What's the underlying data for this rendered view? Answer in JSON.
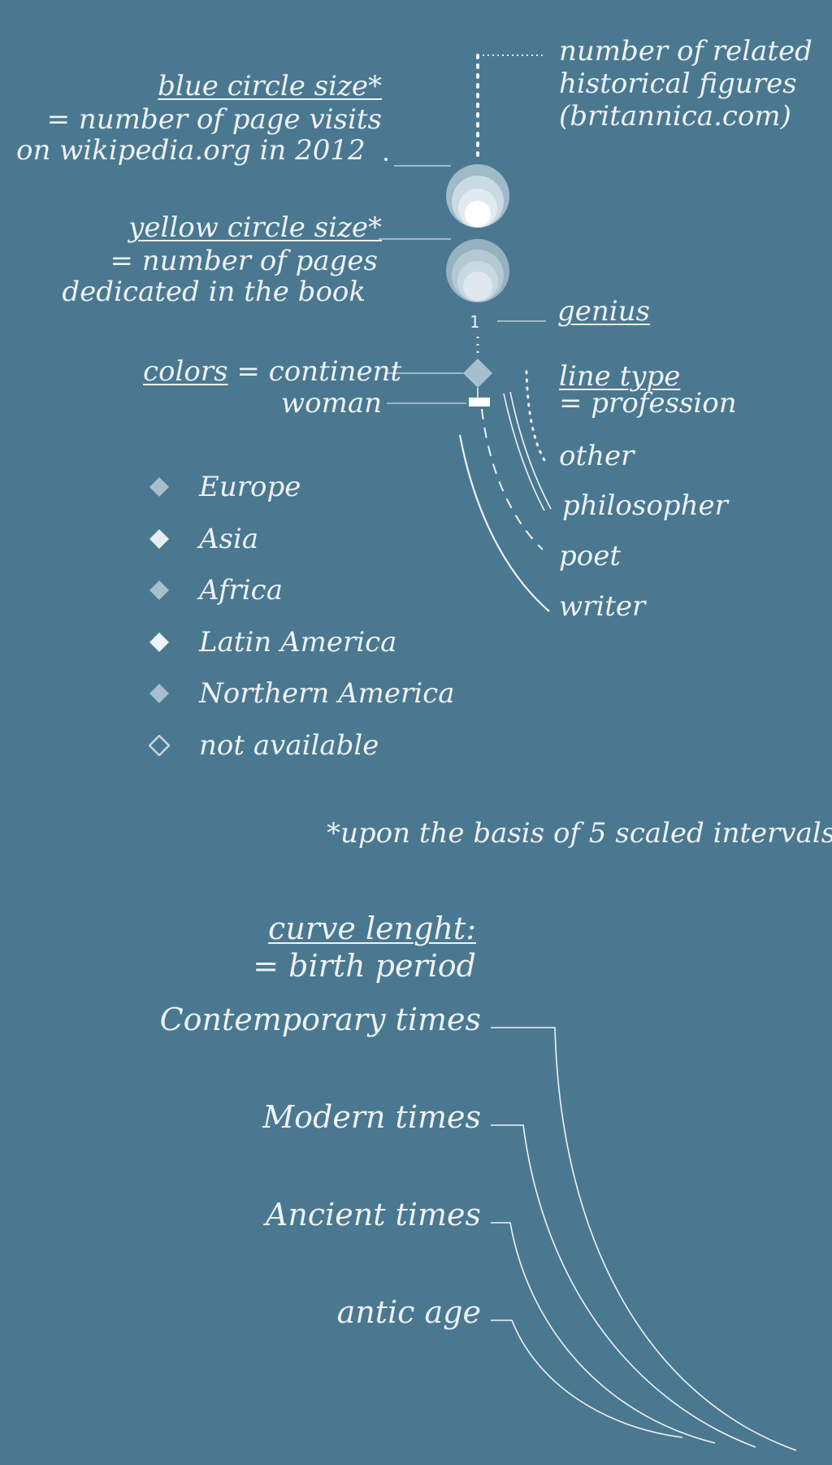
{
  "top": {
    "blue_title": "blue circle size*",
    "blue_line1": "= number of page visits",
    "blue_line2": "on wikipedia.org in 2012",
    "yellow_title": "yellow circle size*",
    "yellow_line1": "= number of pages",
    "yellow_line2": "dedicated in the book",
    "related_line1": "number of related",
    "related_line2": "historical figures",
    "related_line3": "(britannica.com)",
    "genius_number": "1",
    "genius_label": "genius",
    "colors_label": "colors",
    "colors_suffix": "= continent",
    "woman_label": "woman",
    "linetype_title": "line type",
    "linetype_sub": "= profession"
  },
  "professions": [
    {
      "label": "other",
      "style": "dotted"
    },
    {
      "label": "philosopher",
      "style": "double"
    },
    {
      "label": "poet",
      "style": "dashed"
    },
    {
      "label": "writer",
      "style": "solid"
    }
  ],
  "continents": [
    {
      "label": "Europe",
      "color": "#a6bfcc",
      "filled": true
    },
    {
      "label": "Asia",
      "color": "#e8eef2",
      "filled": true
    },
    {
      "label": "Africa",
      "color": "#a6bfcc",
      "filled": true
    },
    {
      "label": "Latin America",
      "color": "#eef3f6",
      "filled": true
    },
    {
      "label": "Northern America",
      "color": "#a6bfcc",
      "filled": true
    },
    {
      "label": "not available",
      "color": "#c8d6de",
      "filled": false
    }
  ],
  "footnote": "*upon the basis of 5 scaled intervals",
  "curve": {
    "title": "curve lenght:",
    "subtitle": "= birth period",
    "periods": [
      "Contemporary times",
      "Modern times",
      "Ancient times",
      "antic age"
    ]
  },
  "colors": {
    "background": "#4a7890",
    "ink": "#eef2f4",
    "continent_marker": "#a6bfcc"
  }
}
